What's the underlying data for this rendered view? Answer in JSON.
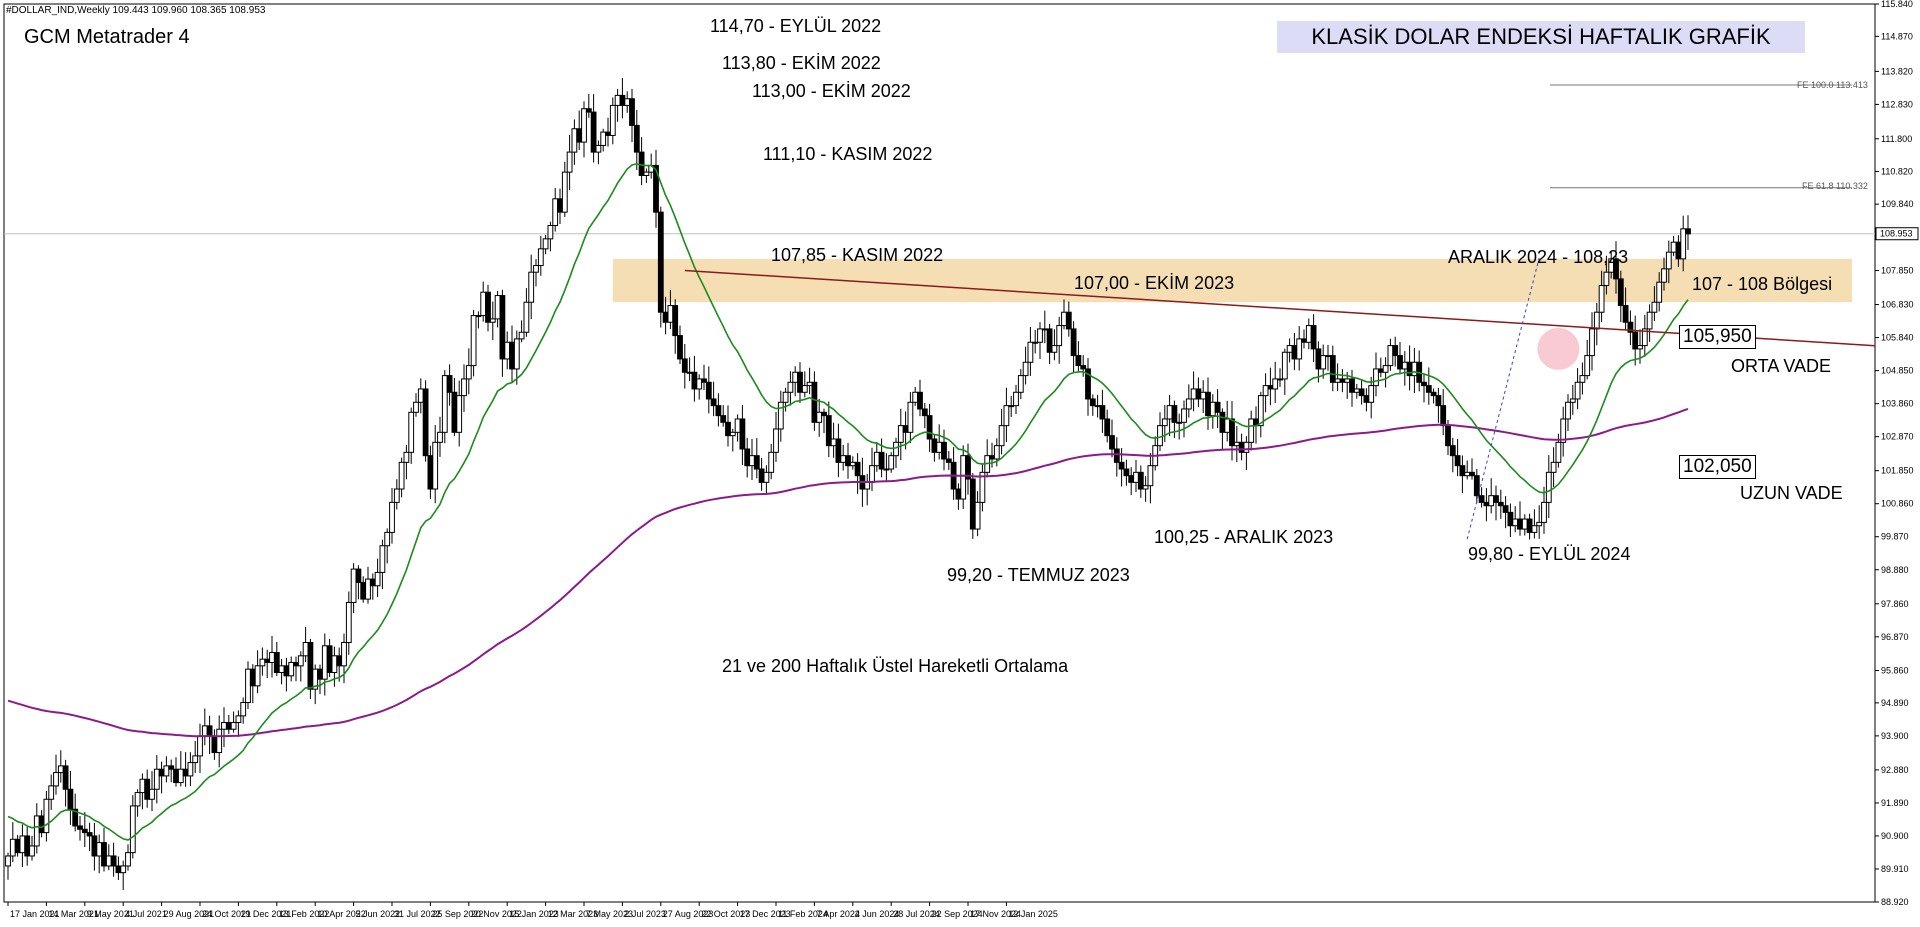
{
  "header": {
    "ohlc": "#DOLLAR_IND,Weekly  109.443 109.960 108.365 108.953",
    "platform": "GCM Metatrader 4",
    "title": "KLASİK DOLAR ENDEKSİ HAFTALIK GRAFİK"
  },
  "annotations": {
    "a1": "114,70 - EYLÜL 2022",
    "a2": "113,80 - EKİM 2022",
    "a3": "113,00 - EKİM 2022",
    "a4": "111,10 - KASIM 2022",
    "a5": "107,85 - KASIM 2022",
    "a6": "107,00 - EKİM 2023",
    "a7": "ARALIK 2024 - 108,23",
    "a8": "107 - 108 Bölgesi",
    "a9": "100,25 - ARALIK 2023",
    "a10": "99,20 - TEMMUZ 2023",
    "a11": "99,80 - EYLÜL 2024",
    "ema_note": "21 ve 200 Haftalık Üstel Hareketli Ortalama",
    "orta_vade": "ORTA VADE",
    "uzun_vade": "UZUN VADE",
    "orta_value": "105,950",
    "uzun_value": "102,050",
    "fe100": "FE 100.0 113.413",
    "fe618": "FE 61.8 110.332"
  },
  "colors": {
    "ema21": "#1a8c1a",
    "ema200": "#8b1a8b",
    "trendline": "#8b1a1a",
    "zone": "#f5deb3",
    "circle": "#f4a6b8",
    "fib": "#3344cc",
    "candle": "#000000"
  },
  "chart_data": {
    "type": "candlestick",
    "symbol": "#DOLLAR_IND",
    "timeframe": "Weekly",
    "last_price": 108.953,
    "ohlc_last": {
      "open": 109.443,
      "high": 109.96,
      "low": 108.365,
      "close": 108.953
    },
    "ylim": [
      88.92,
      115.84
    ],
    "y_ticks": [
      "115.840",
      "114.870",
      "113.820",
      "112.830",
      "111.800",
      "110.820",
      "109.840",
      "108.870",
      "107.850",
      "106.830",
      "105.840",
      "104.850",
      "103.860",
      "102.870",
      "101.850",
      "100.860",
      "99.870",
      "98.880",
      "97.860",
      "96.870",
      "95.860",
      "94.890",
      "93.900",
      "92.880",
      "91.890",
      "90.900",
      "89.910",
      "88.920"
    ],
    "x_ticks": [
      "17 Jan 2021",
      "14 Mar 2021",
      "9 May 2021",
      "4 Jul 2021",
      "29 Aug 2021",
      "24 Oct 2021",
      "19 Dec 2021",
      "13 Feb 2022",
      "10 Apr 2022",
      "5 Jun 2022",
      "31 Jul 2022",
      "25 Sep 2022",
      "20 Nov 2022",
      "15 Jan 2023",
      "12 Mar 2023",
      "7 May 2023",
      "2 Jul 2023",
      "27 Aug 2023",
      "22 Oct 2023",
      "17 Dec 2023",
      "11 Feb 2024",
      "7 Apr 2024",
      "2 Jun 2024",
      "28 Jul 2024",
      "22 Sep 2024",
      "17 Nov 2024",
      "12 Jan 2025"
    ],
    "closes": [
      90.3,
      90.8,
      90.4,
      90.9,
      90.3,
      90.6,
      91.5,
      91.0,
      92.0,
      92.4,
      92.8,
      93.0,
      92.3,
      91.7,
      91.2,
      91.1,
      91.0,
      90.9,
      90.3,
      90.7,
      90.0,
      90.3,
      90.0,
      89.8,
      90.0,
      90.4,
      91.8,
      92.2,
      92.6,
      92.0,
      92.3,
      92.9,
      92.7,
      93.0,
      92.9,
      92.5,
      92.9,
      92.7,
      93.1,
      93.3,
      93.9,
      94.2,
      93.9,
      93.4,
      94.1,
      94.3,
      94.1,
      94.3,
      94.5,
      94.9,
      95.9,
      95.4,
      96.0,
      96.2,
      96.1,
      96.4,
      95.8,
      96.0,
      95.7,
      96.1,
      96.0,
      96.3,
      96.7,
      95.3,
      95.9,
      95.6,
      96.6,
      95.8,
      96.3,
      96.0,
      96.7,
      97.9,
      98.9,
      98.5,
      98.0,
      98.6,
      98.4,
      98.8,
      99.6,
      100.0,
      100.9,
      101.3,
      102.1,
      102.4,
      103.6,
      103.9,
      104.3,
      102.3,
      101.3,
      102.7,
      103.0,
      104.7,
      104.2,
      103.0,
      104.1,
      104.6,
      105.0,
      106.5,
      106.5,
      107.2,
      106.3,
      106.4,
      107.1,
      105.2,
      105.7,
      104.9,
      105.8,
      106.0,
      106.9,
      107.8,
      108.0,
      108.5,
      108.8,
      109.2,
      110.0,
      109.6,
      110.8,
      111.4,
      112.1,
      111.7,
      112.7,
      112.6,
      111.4,
      111.6,
      112.0,
      111.9,
      112.8,
      113.1,
      112.8,
      113.0,
      112.2,
      111.4,
      110.7,
      110.8,
      111.0,
      109.6,
      106.6,
      106.3,
      106.8,
      105.9,
      105.2,
      104.8,
      104.8,
      104.3,
      104.6,
      104.5,
      104.0,
      103.8,
      103.5,
      103.3,
      102.9,
      103.0,
      103.4,
      102.5,
      102.0,
      102.3,
      101.9,
      101.5,
      101.8,
      102.4,
      103.1,
      103.9,
      104.2,
      104.5,
      104.8,
      104.2,
      104.4,
      104.5,
      103.3,
      103.6,
      103.5,
      102.6,
      102.8,
      102.1,
      102.3,
      102.0,
      102.1,
      101.7,
      101.3,
      101.5,
      102.0,
      102.4,
      101.9,
      101.9,
      102.3,
      102.7,
      103.2,
      103.0,
      103.9,
      104.2,
      103.7,
      103.5,
      102.8,
      102.4,
      102.7,
      102.2,
      102.1,
      101.3,
      101.0,
      102.3,
      101.6,
      100.1,
      100.9,
      101.8,
      102.3,
      102.2,
      102.6,
      103.2,
      103.8,
      103.8,
      104.2,
      104.7,
      105.1,
      105.7,
      105.7,
      106.1,
      106.1,
      105.4,
      105.6,
      106.2,
      106.6,
      106.1,
      105.3,
      105.0,
      104.9,
      104.0,
      103.8,
      103.8,
      103.4,
      102.9,
      102.5,
      102.1,
      101.9,
      101.7,
      101.5,
      101.8,
      101.3,
      101.4,
      102.0,
      102.6,
      103.2,
      103.4,
      103.8,
      103.3,
      103.3,
      103.7,
      104.0,
      104.3,
      104.0,
      104.2,
      103.5,
      103.9,
      103.6,
      103.0,
      103.4,
      102.6,
      102.7,
      102.4,
      102.7,
      103.4,
      103.2,
      104.1,
      104.4,
      104.3,
      104.6,
      104.6,
      105.4,
      105.6,
      105.2,
      105.8,
      105.7,
      106.2,
      105.5,
      104.9,
      105.3,
      105.3,
      104.5,
      104.6,
      104.5,
      104.6,
      104.2,
      104.3,
      104.1,
      103.9,
      104.4,
      104.9,
      104.8,
      105.0,
      105.6,
      105.3,
      104.9,
      105.1,
      104.7,
      105.1,
      104.5,
      104.4,
      104.2,
      104.1,
      103.8,
      103.2,
      102.6,
      102.3,
      102.0,
      101.7,
      101.8,
      101.7,
      101.1,
      100.9,
      100.8,
      101.1,
      100.9,
      100.8,
      100.6,
      100.2,
      100.4,
      100.1,
      100.4,
      100.0,
      100.2,
      100.3,
      100.9,
      101.8,
      102.1,
      102.7,
      103.4,
      103.9,
      104.0,
      104.5,
      104.7,
      105.3,
      106.1,
      106.6,
      107.4,
      107.8,
      108.2,
      107.6,
      106.8,
      106.3,
      106.0,
      105.5,
      105.6,
      106.1,
      106.6,
      106.9,
      107.5,
      107.9,
      108.4,
      108.7,
      108.2,
      109.1,
      108.95
    ],
    "series": [
      {
        "name": "21",
        "type": "ema",
        "period": 21,
        "last_value": 105.95
      },
      {
        "name": "200",
        "type": "ema",
        "period": 200,
        "last_value": 102.05
      }
    ],
    "levels": {
      "zone": [
        107.0,
        108.0
      ],
      "fe_100": 113.413,
      "fe_61_8": 110.332
    },
    "trendline": {
      "from": [
        -1,
        107.85
      ],
      "to": [
        1,
        105.95
      ]
    },
    "points": [
      {
        "label": "114,70 - EYLÜL 2022",
        "value": 114.7
      },
      {
        "label": "113,80 - EKİM 2022",
        "value": 113.8
      },
      {
        "label": "113,00 - EKİM 2022",
        "value": 113.0
      },
      {
        "label": "111,10 - KASIM 2022",
        "value": 111.1
      },
      {
        "label": "107,85 - KASIM 2022",
        "value": 107.85
      },
      {
        "label": "107,00 - EKİM 2023",
        "value": 107.0
      },
      {
        "label": "99,20 - TEMMUZ 2023",
        "value": 99.2
      },
      {
        "label": "100,25 - ARALIK 2023",
        "value": 100.25
      },
      {
        "label": "99,80 - EYLÜL 2024",
        "value": 99.8
      },
      {
        "label": "ARALIK 2024 - 108,23",
        "value": 108.23
      }
    ]
  }
}
